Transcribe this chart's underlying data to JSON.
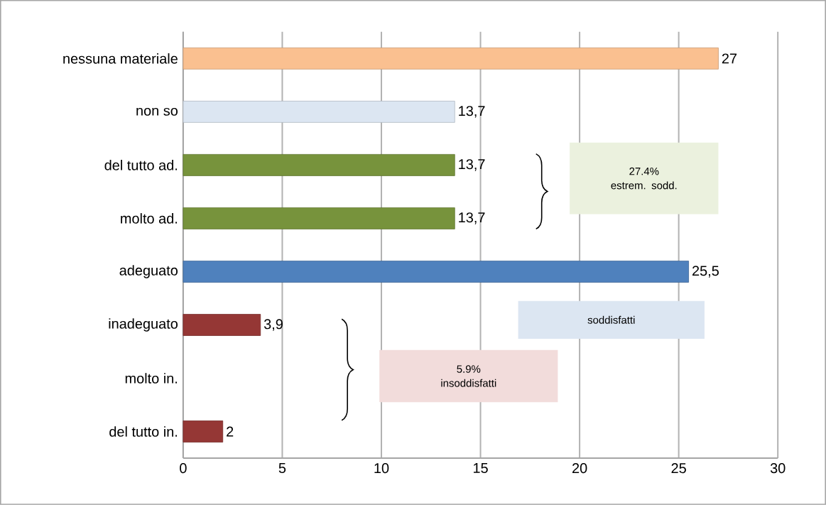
{
  "chart_data": {
    "type": "bar",
    "orientation": "horizontal",
    "categories": [
      "nessuna materiale",
      "non so",
      "del tutto ad.",
      "molto ad.",
      "adeguato",
      "inadeguato",
      "molto in.",
      "del tutto in."
    ],
    "values": [
      27,
      13.7,
      13.7,
      13.7,
      25.5,
      3.9,
      null,
      2
    ],
    "colors": [
      "#fac090",
      "#dce6f2",
      "#77933c",
      "#77933c",
      "#4f81bd",
      "#953735",
      "#953735",
      "#953735"
    ],
    "value_labels": [
      "27",
      "13,7",
      "13,7",
      "13,7",
      "25,5",
      "3,9",
      null,
      "2"
    ],
    "xlim": [
      0,
      30
    ],
    "xticks": [
      0,
      5,
      10,
      15,
      20,
      25,
      30
    ],
    "grid": "x",
    "annotations": [
      "27.4% estrem. sodd.",
      "soddisfatti",
      "5.9% insoddisfatti"
    ]
  }
}
